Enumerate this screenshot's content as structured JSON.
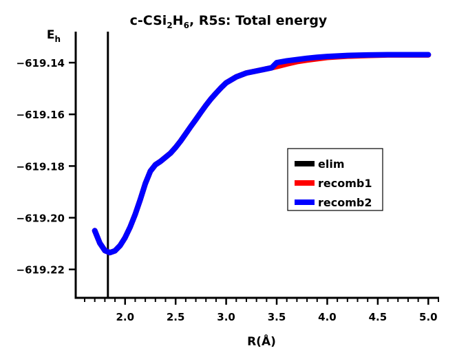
{
  "chart_data": {
    "type": "line",
    "title": {
      "molecule_prefix": "c-CSi",
      "sub1": "2",
      "mid": "H",
      "sub2": "6",
      "suffix": ", R5s: Total energy"
    },
    "ylabel": {
      "base": "E",
      "sub": "h"
    },
    "xlabel": "R(Å)",
    "xlim": [
      1.6,
      5.1
    ],
    "ylim": [
      -619.231,
      -619.128
    ],
    "x_ticks": [
      {
        "value": 2.0,
        "label": "2.0"
      },
      {
        "value": 2.5,
        "label": "2.5"
      },
      {
        "value": 3.0,
        "label": "3.0"
      },
      {
        "value": 3.5,
        "label": "3.5"
      },
      {
        "value": 4.0,
        "label": "4.0"
      },
      {
        "value": 4.5,
        "label": "4.5"
      },
      {
        "value": 5.0,
        "label": "5.0"
      }
    ],
    "x_minor_step": 0.1,
    "y_ticks": [
      {
        "value": -619.14,
        "label": "−619.14"
      },
      {
        "value": -619.16,
        "label": "−619.16"
      },
      {
        "value": -619.18,
        "label": "−619.18"
      },
      {
        "value": -619.2,
        "label": "−619.20"
      },
      {
        "value": -619.22,
        "label": "−619.22"
      }
    ],
    "vlines": [
      {
        "name": "elim",
        "x": 1.83,
        "color": "#000000"
      }
    ],
    "series": [
      {
        "name": "recomb1",
        "color": "#ff0000",
        "x": [
          1.7,
          1.75,
          1.8,
          1.85,
          1.9,
          1.95,
          2.0,
          2.05,
          2.1,
          2.15,
          2.2,
          2.25,
          2.3,
          2.35,
          2.4,
          2.45,
          2.5,
          2.55,
          2.6,
          2.65,
          2.7,
          2.75,
          2.8,
          2.85,
          2.9,
          2.95,
          3.0,
          3.1,
          3.2,
          3.3,
          3.4,
          3.5,
          3.6,
          3.7,
          3.8,
          3.9,
          4.0,
          4.2,
          4.4,
          4.6,
          4.8,
          5.0
        ],
        "y": [
          -619.205,
          -619.2098,
          -619.2127,
          -619.2135,
          -619.2128,
          -619.2108,
          -619.2077,
          -619.2036,
          -619.1987,
          -619.193,
          -619.1868,
          -619.182,
          -619.1795,
          -619.1782,
          -619.1766,
          -619.175,
          -619.1728,
          -619.1703,
          -619.1675,
          -619.1647,
          -619.162,
          -619.1592,
          -619.1565,
          -619.154,
          -619.1518,
          -619.1497,
          -619.1478,
          -619.1455,
          -619.144,
          -619.1432,
          -619.1424,
          -619.1415,
          -619.1405,
          -619.1396,
          -619.139,
          -619.1385,
          -619.138,
          -619.1375,
          -619.1372,
          -619.137,
          -619.137,
          -619.137
        ]
      },
      {
        "name": "recomb2",
        "color": "#0000ff",
        "x": [
          1.7,
          1.75,
          1.8,
          1.85,
          1.9,
          1.95,
          2.0,
          2.05,
          2.1,
          2.15,
          2.2,
          2.25,
          2.3,
          2.35,
          2.4,
          2.45,
          2.5,
          2.55,
          2.6,
          2.65,
          2.7,
          2.75,
          2.8,
          2.85,
          2.9,
          2.95,
          3.0,
          3.1,
          3.2,
          3.3,
          3.4,
          3.45,
          3.5,
          3.6,
          3.7,
          3.8,
          3.9,
          4.0,
          4.2,
          4.4,
          4.6,
          4.8,
          5.0
        ],
        "y": [
          -619.205,
          -619.2098,
          -619.2127,
          -619.2135,
          -619.2128,
          -619.2108,
          -619.2077,
          -619.2036,
          -619.1987,
          -619.193,
          -619.1868,
          -619.182,
          -619.1795,
          -619.1782,
          -619.1766,
          -619.175,
          -619.1728,
          -619.1703,
          -619.1675,
          -619.1647,
          -619.162,
          -619.1592,
          -619.1565,
          -619.154,
          -619.1518,
          -619.1497,
          -619.1478,
          -619.1455,
          -619.144,
          -619.1432,
          -619.1424,
          -619.142,
          -619.14,
          -619.1393,
          -619.1388,
          -619.1383,
          -619.1379,
          -619.1376,
          -619.1372,
          -619.137,
          -619.1369,
          -619.1369,
          -619.1369
        ]
      }
    ],
    "legend": {
      "placement": "right-middle",
      "entries": [
        {
          "label": "elim",
          "color": "#000000"
        },
        {
          "label": "recomb1",
          "color": "#ff0000"
        },
        {
          "label": "recomb2",
          "color": "#0000ff"
        }
      ]
    }
  }
}
